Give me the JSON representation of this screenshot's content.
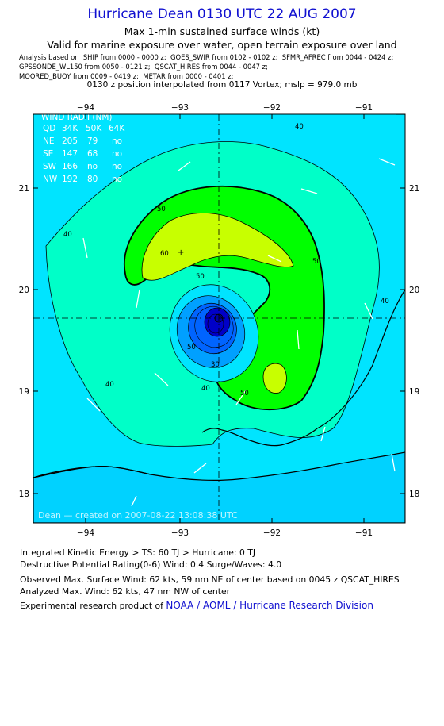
{
  "header": {
    "title": "Hurricane Dean 0130 UTC 22 AUG 2007",
    "subtitle1": "Max 1-min sustained surface winds (kt)",
    "subtitle2": "Valid for marine exposure over water, open terrain exposure over land",
    "analysis_lines": [
      "Analysis based on  SHIP from 0000 - 0000 z;  GOES_SWIR from 0102 - 0102 z;  SFMR_AFREC from 0044 - 0424 z;",
      "GPSSONDE_WL150 from 0050 - 0121 z;  QSCAT_HIRES from 0044 - 0047 z;",
      "MOORED_BUOY from 0009 - 0419 z;  METAR from 0000 - 0401 z;"
    ],
    "position_line": "0130 z position interpolated from 0117 Vortex; mslp = 979.0 mb"
  },
  "map": {
    "lon_ticks": [
      "−94",
      "−93",
      "−92",
      "−91"
    ],
    "lat_ticks": [
      "21",
      "20",
      "19",
      "18"
    ],
    "credit": "Dean —  created on  2007-08-22 13:08:38 UTC",
    "wind_radii": {
      "title": "WIND RADII (NM)",
      "header": [
        "QD",
        "34K",
        "50K",
        "64K"
      ],
      "rows": [
        [
          "NE",
          "205",
          "79",
          "no"
        ],
        [
          "SE",
          "147",
          "68",
          "no"
        ],
        [
          "SW",
          "166",
          "no",
          "no"
        ],
        [
          "NW",
          "192",
          "80",
          "no"
        ]
      ]
    },
    "contour_labels": [
      "40",
      "40",
      "40",
      "40",
      "50",
      "50",
      "50",
      "50",
      "50",
      "60",
      "30",
      "40"
    ],
    "colors": {
      "outer": "#00e4ff",
      "band40": "#00ffc8",
      "band50": "#00ff00",
      "band60": "#c8ff00",
      "water_south": "#00d2ff",
      "eye_dark": "#0000c8",
      "eye_mid": "#0064ff",
      "eye_light": "#00a0ff"
    }
  },
  "footer": {
    "ike": "Integrated Kinetic Energy > TS: 60 TJ   > Hurricane: 0 TJ",
    "dpr": "Destructive Potential Rating(0-6)   Wind: 0.4 Surge/Waves: 4.0",
    "obs_max": "Observed Max. Surface Wind: 62 kts, 59 nm NE of center based on 0045 z QSCAT_HIRES",
    "analyzed_max": "Analyzed Max. Wind: 62 kts, 47 nm NW of center",
    "credit_prefix": "Experimental research product of ",
    "credit_link": "NOAA / AOML / Hurricane Research Division"
  }
}
